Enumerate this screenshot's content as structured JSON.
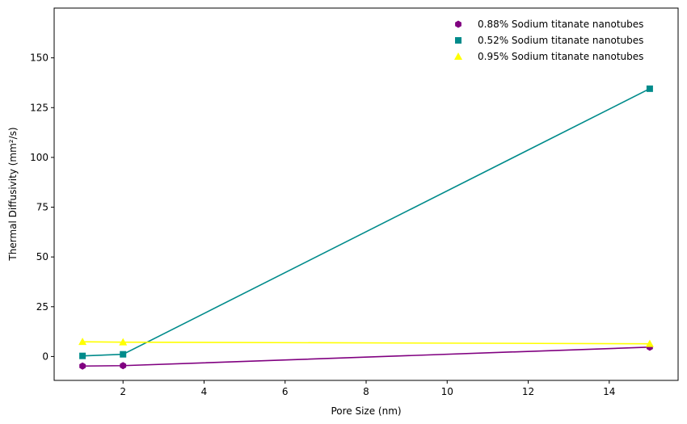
{
  "chart_data": {
    "type": "line",
    "xlabel": "Pore Size (nm)",
    "ylabel": "Thermal Diffusivity (mm²/s)",
    "xlim": [
      0.3,
      15.7
    ],
    "ylim": [
      -12,
      175
    ],
    "xticks": [
      2,
      4,
      6,
      8,
      10,
      12,
      14
    ],
    "yticks": [
      0,
      25,
      50,
      75,
      100,
      125,
      150
    ],
    "grid": false,
    "legend_position": "top-right",
    "series": [
      {
        "name": "0.88% Sodium titanate nanotubes",
        "color": "#800080",
        "marker": "hexagon",
        "x": [
          1,
          2,
          15
        ],
        "y": [
          -4.8,
          -4.6,
          4.7
        ]
      },
      {
        "name": "0.52% Sodium titanate nanotubes",
        "color": "#008b8b",
        "marker": "square",
        "x": [
          1,
          2,
          15
        ],
        "y": [
          0.3,
          1.1,
          134.5
        ]
      },
      {
        "name": "0.95% Sodium titanate nanotubes",
        "color": "#ffff00",
        "marker": "triangle",
        "x": [
          1,
          2,
          15
        ],
        "y": [
          7.4,
          7.2,
          6.4
        ]
      }
    ]
  }
}
